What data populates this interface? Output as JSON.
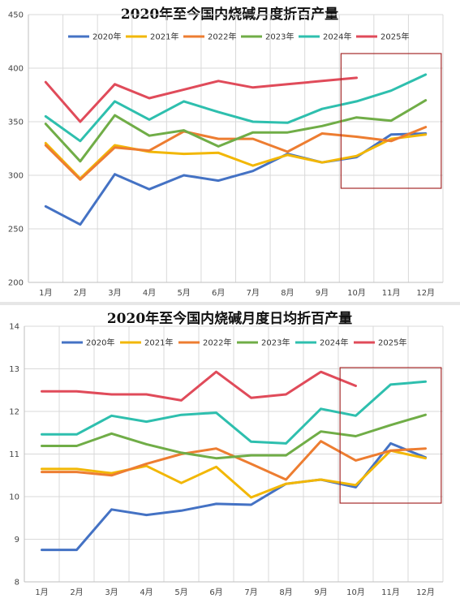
{
  "colors": {
    "2020年": "#4472c4",
    "2021年": "#f2b705",
    "2022年": "#ed7d31",
    "2023年": "#70ad47",
    "2024年": "#2ebfae",
    "2025年": "#e04b5a",
    "highlight_box": "#a52a2a"
  },
  "chart_data": [
    {
      "type": "line",
      "title": "2020年至今国内烧碱月度折百产量",
      "categories": [
        "1月",
        "2月",
        "3月",
        "4月",
        "5月",
        "6月",
        "7月",
        "8月",
        "9月",
        "10月",
        "11月",
        "12月"
      ],
      "ylim": [
        200,
        450
      ],
      "yticks": [
        "200",
        "250",
        "300",
        "350",
        "400",
        "450"
      ],
      "legend_position": "top",
      "highlight_range": [
        "10月",
        "12月"
      ],
      "series": [
        {
          "name": "2020年",
          "values": [
            271,
            254,
            301,
            287,
            300,
            295,
            304,
            320,
            312,
            317,
            338,
            339
          ]
        },
        {
          "name": "2021年",
          "values": [
            330,
            297,
            328,
            322,
            320,
            321,
            309,
            319,
            312,
            318,
            334,
            338
          ]
        },
        {
          "name": "2022年",
          "values": [
            328,
            296,
            326,
            323,
            341,
            334,
            334,
            322,
            339,
            336,
            332,
            345
          ]
        },
        {
          "name": "2023年",
          "values": [
            348,
            313,
            356,
            337,
            342,
            327,
            340,
            340,
            346,
            354,
            351,
            370
          ]
        },
        {
          "name": "2024年",
          "values": [
            355,
            332,
            369,
            352,
            369,
            359,
            350,
            349,
            362,
            369,
            379,
            394
          ]
        },
        {
          "name": "2025年",
          "values": [
            387,
            350,
            385,
            372,
            380,
            388,
            382,
            385,
            388,
            391,
            null,
            null
          ]
        }
      ]
    },
    {
      "type": "line",
      "title": "2020年至今国内烧碱月度日均折百产量",
      "categories": [
        "1月",
        "2月",
        "3月",
        "4月",
        "5月",
        "6月",
        "7月",
        "8月",
        "9月",
        "10月",
        "11月",
        "12月"
      ],
      "ylim": [
        8,
        14
      ],
      "yticks": [
        "8",
        "9",
        "10",
        "11",
        "12",
        "13",
        "14"
      ],
      "legend_position": "top",
      "highlight_range": [
        "10月",
        "12月"
      ],
      "series": [
        {
          "name": "2020年",
          "values": [
            8.75,
            8.75,
            9.7,
            9.57,
            9.67,
            9.83,
            9.81,
            10.3,
            10.4,
            10.22,
            11.25,
            10.92
          ]
        },
        {
          "name": "2021年",
          "values": [
            10.65,
            10.65,
            10.55,
            10.72,
            10.32,
            10.7,
            9.98,
            10.3,
            10.4,
            10.27,
            11.08,
            10.9
          ]
        },
        {
          "name": "2022年",
          "values": [
            10.58,
            10.58,
            10.5,
            10.77,
            11.0,
            11.13,
            10.77,
            10.4,
            11.3,
            10.85,
            11.08,
            11.13
          ]
        },
        {
          "name": "2023年",
          "values": [
            11.19,
            11.19,
            11.48,
            11.23,
            11.03,
            10.9,
            10.97,
            10.97,
            11.53,
            11.42,
            11.68,
            11.92
          ]
        },
        {
          "name": "2024年",
          "values": [
            11.46,
            11.46,
            11.9,
            11.76,
            11.92,
            11.97,
            11.29,
            11.25,
            12.06,
            11.9,
            12.63,
            12.7
          ]
        },
        {
          "name": "2025年",
          "values": [
            12.47,
            12.47,
            12.4,
            12.4,
            12.26,
            12.93,
            12.32,
            12.4,
            12.93,
            12.6,
            null,
            null
          ]
        }
      ]
    }
  ]
}
